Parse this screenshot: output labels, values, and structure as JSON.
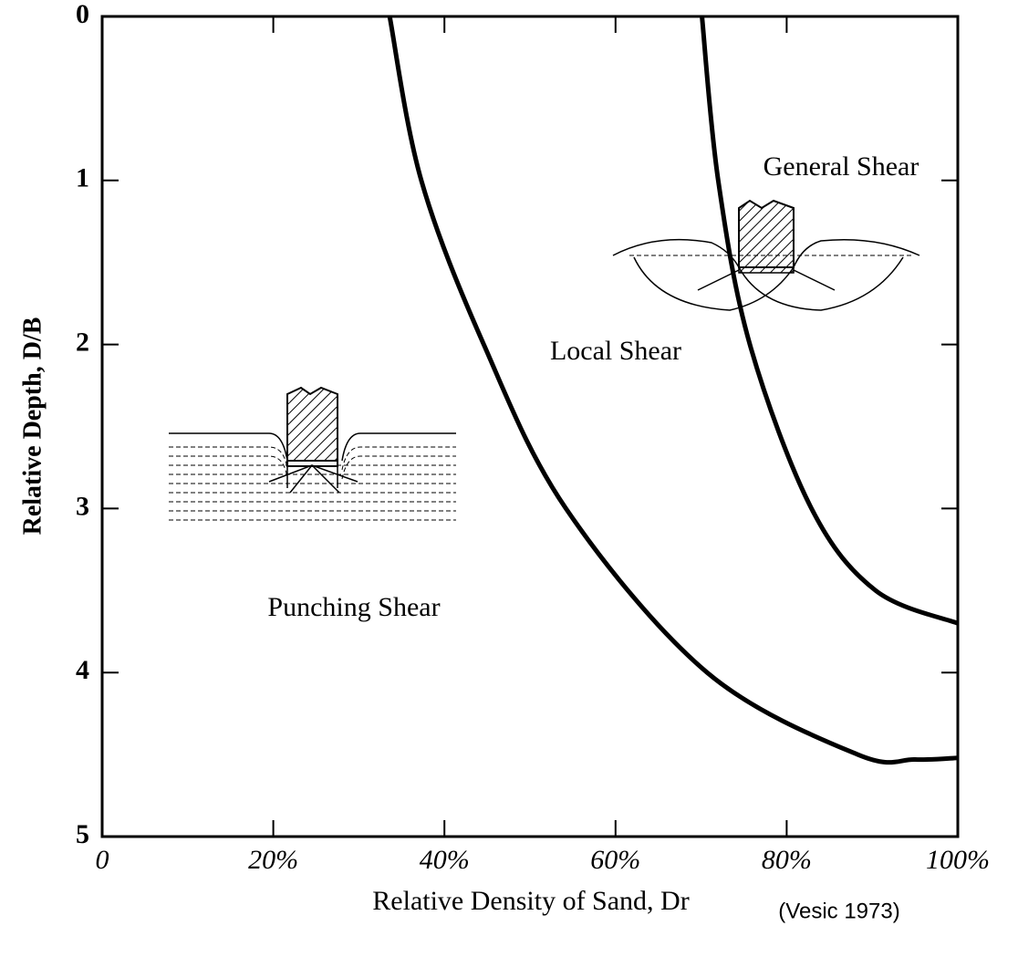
{
  "chart_data": {
    "type": "line",
    "xlabel": "Relative Density of Sand, Dr",
    "ylabel": "Relative Depth, D/B",
    "source": "(Vesic 1973)",
    "annotations": [
      "General Shear",
      "Local Shear",
      "Punching Shear"
    ],
    "series": [
      {
        "color": "#000000",
        "x": [
          33.6,
          37.3,
          44.6,
          54.2,
          70.7,
          88.3,
          95,
          100
        ],
        "values": [
          0,
          1,
          2,
          3,
          4,
          4.5,
          4.53,
          4.52
        ]
      },
      {
        "color": "#000000",
        "x": [
          70.1,
          72.0,
          75.7,
          82.9,
          90.4,
          100
        ],
        "values": [
          0,
          1,
          2,
          3,
          3.5,
          3.7
        ]
      }
    ],
    "xlim": [
      0,
      100
    ],
    "xticks": [
      0,
      {
        "value": 20,
        "label": "20%"
      },
      {
        "value": 40,
        "label": "40%"
      },
      {
        "value": 60,
        "label": "60%"
      },
      {
        "value": 80,
        "label": "80%"
      },
      {
        "value": 100,
        "label": "100%"
      }
    ],
    "ylim": [
      0,
      5
    ],
    "yticks": [
      0,
      1,
      2,
      3,
      4,
      5
    ],
    "y_reversed": true,
    "grid": false
  }
}
